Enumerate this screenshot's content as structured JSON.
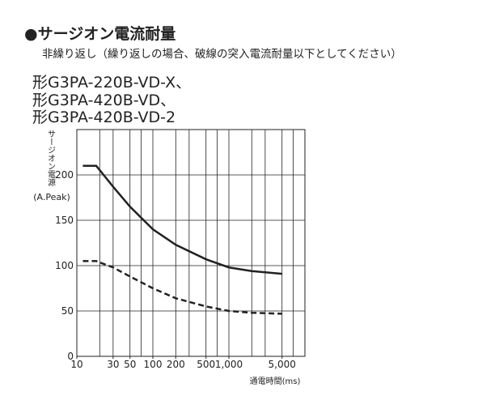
{
  "chart_data": {
    "type": "line",
    "title": "●サージオン電流耐量",
    "subtitle": "非繰り返し（繰り返しの場合、破線の突入電流耐量以下としてください）",
    "models": [
      "形G3PA-220B-VD-X、",
      "形G3PA-420B-VD、",
      "形G3PA-420B-VD-2"
    ],
    "y_label": "サージオン電源",
    "y_unit": "(A.Peak)",
    "x_label": "通電時間(ms)",
    "x_log": true,
    "grid": true,
    "xlim": [
      10,
      10000
    ],
    "ylim": [
      0,
      250
    ],
    "xticks": [
      10,
      30,
      50,
      100,
      200,
      500,
      {
        "value": 1000,
        "label": "1,000"
      },
      {
        "value": 5000,
        "label": "5,000"
      }
    ],
    "xgrid": [
      20,
      30,
      50,
      70,
      100,
      200,
      300,
      500,
      700,
      1000,
      2000,
      3000,
      5000,
      7000
    ],
    "yticks": [
      0,
      50,
      100,
      150,
      200
    ],
    "x": [
      12,
      18,
      30,
      50,
      100,
      200,
      500,
      1000,
      2000,
      5000
    ],
    "series": [
      {
        "color": "#222222",
        "dash": false,
        "values": [
          210,
          210,
          187,
          165,
          140,
          123,
          107,
          98,
          94,
          91
        ]
      },
      {
        "color": "#222222",
        "dash": true,
        "values": [
          105,
          105,
          98,
          88,
          75,
          64,
          55,
          50,
          48,
          47
        ]
      }
    ]
  }
}
